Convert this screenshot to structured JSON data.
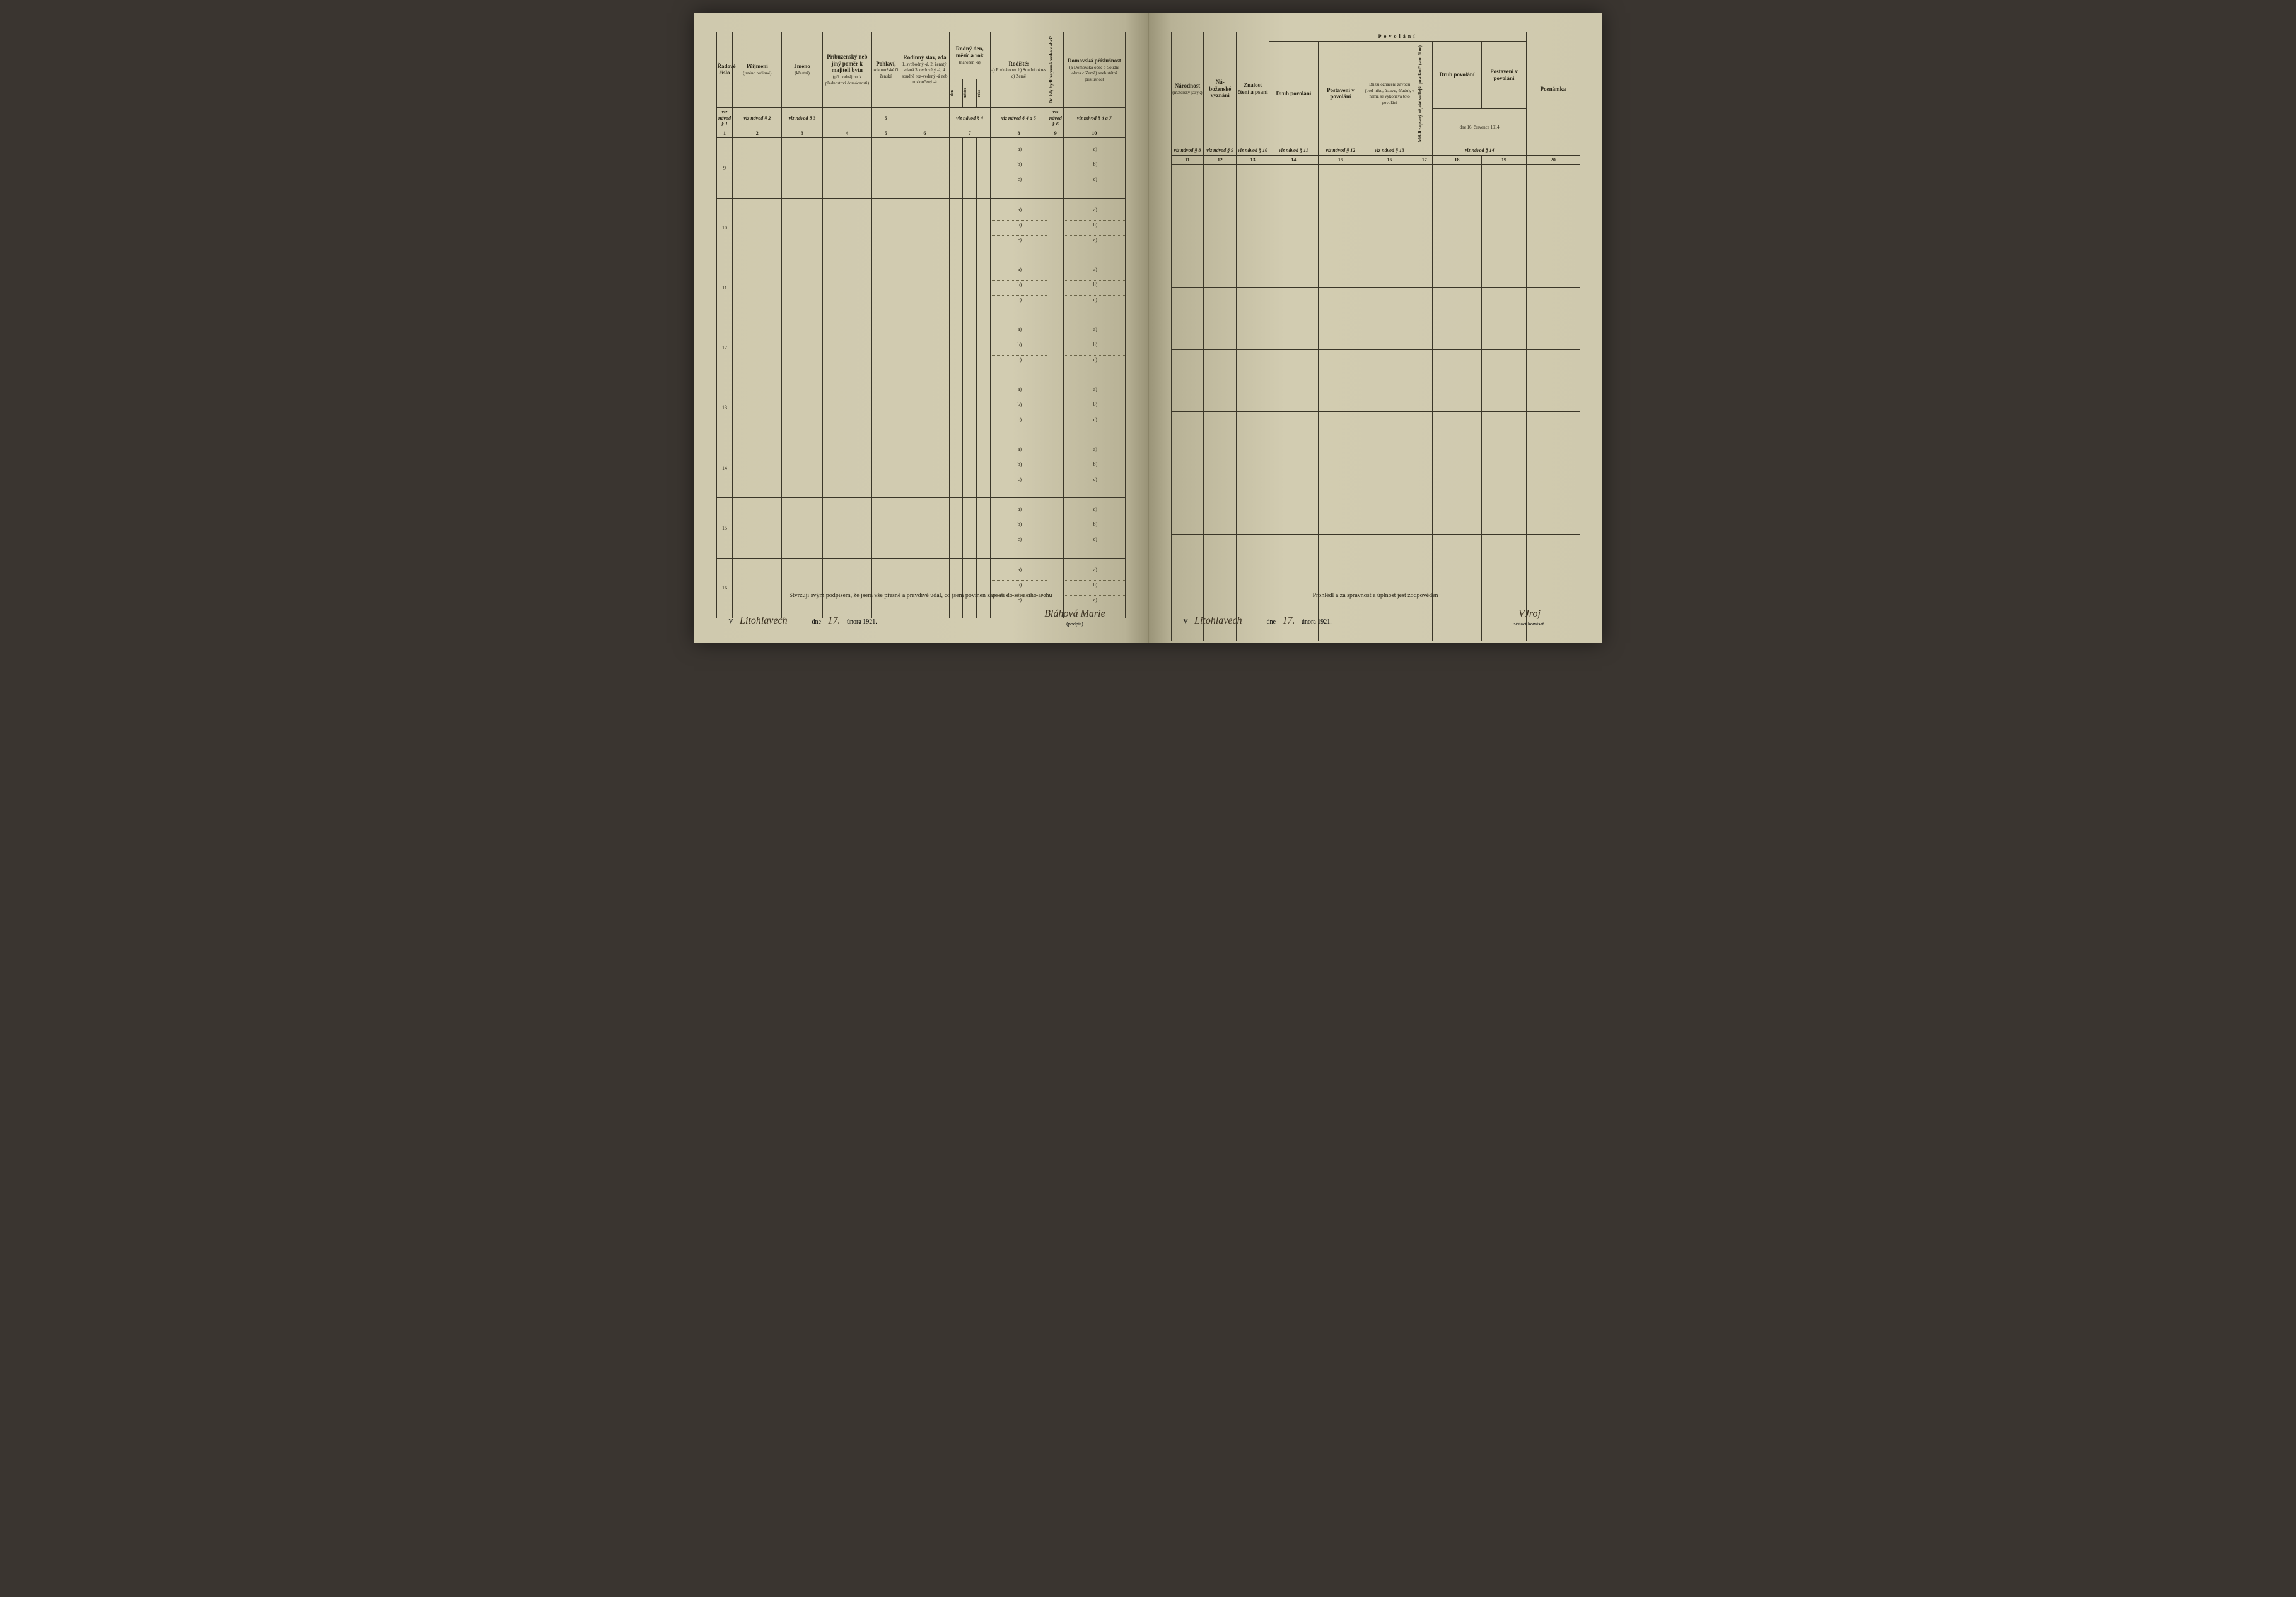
{
  "colors": {
    "paper": "#d2ccb1",
    "ink": "#2a2618",
    "border": "#3a3628",
    "dotted": "#6a6448"
  },
  "left": {
    "headers": {
      "c1": "Řadové číslo",
      "c2": "Příjmení",
      "c2_sub": "(jméno rodinné)",
      "c3": "Jméno",
      "c3_sub": "(křestní)",
      "c4": "Příbuzenský neb jiný poměr k majiteli bytu",
      "c4_sub": "(při podnájmu k přednostovi domácnosti)",
      "c5": "Pohlaví,",
      "c5_sub": "zda mužské či ženské",
      "c6": "Rodinný stav, zda",
      "c6_sub": "1. svobodný -á, 2. ženatý, vdaná 3. ovdovělý -á, 4. soudně roz-vedený -á neb rozloučený -á",
      "c7": "Rodný den, měsíc a rok",
      "c7_sub": "(narozen -a)",
      "c7a": "den",
      "c7b": "měsíce",
      "c7c": "roku",
      "c8": "Rodiště:",
      "c8_sub": "a) Rodná obec b) Soudní okres c) Země",
      "c9": "Od kdy bydlí zapsaná osoba v obci?",
      "c10": "Domovská příslušnost",
      "c10_sub": "(a Domovská obec b Soudní okres c Země) aneb státní příslušnost"
    },
    "navod": {
      "n1": "viz návod § 1",
      "n2": "viz návod § 2",
      "n3": "viz návod § 3",
      "n5": "5",
      "n6": "viz návod § 4",
      "n8": "viz návod § 4 a 5",
      "n9": "viz návod § 6",
      "n10": "viz návod § 4 a 7"
    },
    "colnums": [
      "1",
      "2",
      "3",
      "4",
      "5",
      "6",
      "7",
      "8",
      "9",
      "10"
    ],
    "rownums": [
      "9",
      "10",
      "11",
      "12",
      "13",
      "14",
      "15",
      "16"
    ],
    "footer_text": "Stvrzuji svým podpisem, že jsem vše přesně a pravdivě udal, co jsem povinen zapsati do sčítacího archu",
    "place_prefix": "V",
    "place": "Litohlavech",
    "date_prefix": "dne",
    "day": "17.",
    "date_suffix": "února 1921.",
    "signature": "Bláhová Marie",
    "sig_label": "(podpis)"
  },
  "right": {
    "headers": {
      "c11": "Národnost",
      "c11_sub": "(mateřský jazyk)",
      "c12": "Ná-boženské vyznání",
      "c13": "Znalost čtení a psaní",
      "povolani": "Povolání",
      "c14": "Druh povolání",
      "c15": "Postavení v povolání",
      "c16": "Bližší označení závodu (pod-niku, ústavu, úřadu), v němž se vykonává toto povolání",
      "c17_rot": "Měl-li zapsaný nějaké vedlejší povolání? (ano či ne)",
      "c18": "Druh povolání",
      "c19": "Postavení v povolání",
      "c19_sub": "dne 16. července 1914",
      "c20": "Poznámka"
    },
    "navod": {
      "n11": "viz návod § 8",
      "n12": "viz návod § 9",
      "n13": "viz návod § 10",
      "n14": "viz návod § 11",
      "n15": "viz návod § 12",
      "n16": "viz návod § 13",
      "n18": "viz návod § 14"
    },
    "colnums": [
      "11",
      "12",
      "13",
      "14",
      "15",
      "16",
      "17",
      "18",
      "19",
      "20"
    ],
    "footer_text": "Prohlédl a za správnost a úplnost jest zodpověden",
    "place_prefix": "V",
    "place": "Litohlavech",
    "date_prefix": "dne",
    "day": "17.",
    "date_suffix": "února 1921.",
    "signature": "VJroj",
    "sig_label": "sčítací komisař."
  },
  "abc_labels": [
    "a)",
    "b)",
    "c)"
  ]
}
